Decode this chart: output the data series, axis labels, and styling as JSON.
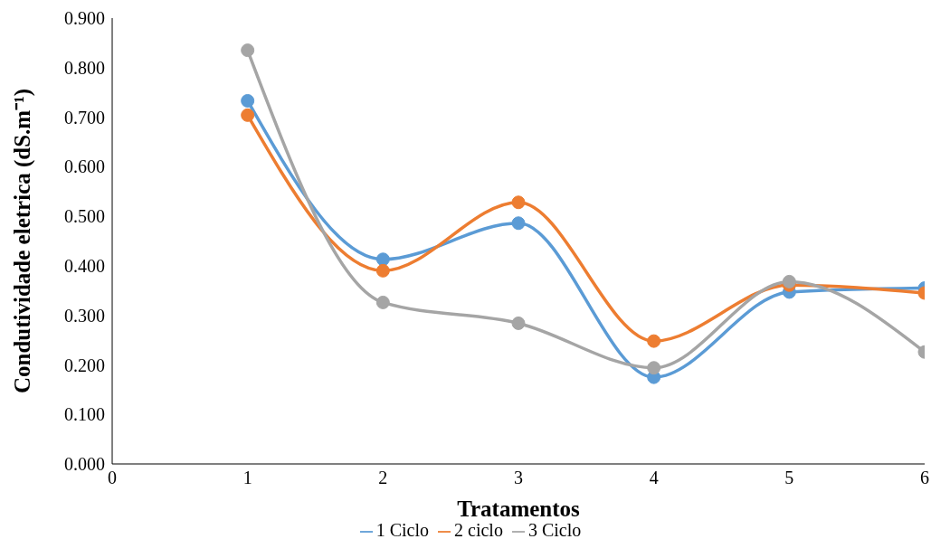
{
  "chart_data": {
    "type": "line",
    "xlabel": "Tratamentos",
    "ylabel": "Condutividade eletrica (dS.m⁻¹)",
    "x": [
      1,
      2,
      3,
      4,
      5,
      6
    ],
    "series": [
      {
        "name": "1 Ciclo",
        "color": "#5b9bd5",
        "values": [
          0.733,
          0.413,
          0.486,
          0.175,
          0.347,
          0.355
        ]
      },
      {
        "name": "2 ciclo",
        "color": "#ed7d31",
        "values": [
          0.704,
          0.39,
          0.528,
          0.248,
          0.361,
          0.345
        ]
      },
      {
        "name": "3 Ciclo",
        "color": "#a5a5a5",
        "values": [
          0.835,
          0.326,
          0.284,
          0.194,
          0.368,
          0.226
        ]
      }
    ],
    "xlim": [
      0,
      6
    ],
    "xticks": [
      0,
      1,
      2,
      3,
      4,
      5,
      6
    ],
    "ylim": [
      0,
      0.9
    ],
    "yticks": [
      {
        "value": 0,
        "label": "0.000"
      },
      {
        "value": 0.1,
        "label": "0.100"
      },
      {
        "value": 0.2,
        "label": "0.200"
      },
      {
        "value": 0.3,
        "label": "0.300"
      },
      {
        "value": 0.4,
        "label": "0.400"
      },
      {
        "value": 0.5,
        "label": "0.500"
      },
      {
        "value": 0.6,
        "label": "0.600"
      },
      {
        "value": 0.7,
        "label": "0.700"
      },
      {
        "value": 0.8,
        "label": "0.800"
      },
      {
        "value": 0.9,
        "label": "0.900"
      }
    ],
    "grid": false,
    "legend": "bottom",
    "marker": "circle",
    "line_style": "solid"
  }
}
